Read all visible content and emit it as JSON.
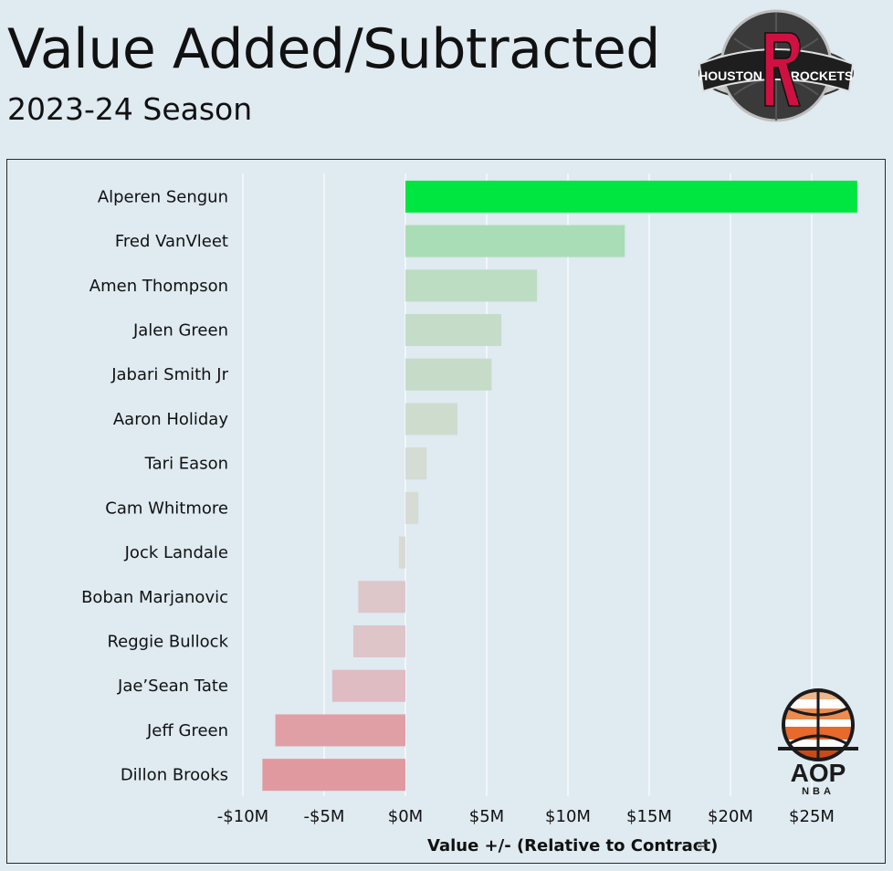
{
  "header": {
    "title": "Value Added/Subtracted",
    "subtitle": "2023-24 Season"
  },
  "logos": {
    "team": {
      "icon": "houston-rockets-logo",
      "text_left": "HOUSTON",
      "text_right": "ROCKETS"
    },
    "brand": {
      "icon": "aop-basketball-logo",
      "text": "AOP",
      "subtext": "NBA"
    }
  },
  "colors": {
    "max_positive": "#00e640",
    "mid_positive": "#a8ddb4",
    "neutral": "#d9dcd6",
    "mid_negative": "#dfbcc3",
    "max_negative": "#e0999e"
  },
  "chart_data": {
    "type": "bar",
    "orientation": "horizontal",
    "title": "Value Added/Subtracted",
    "subtitle": "2023-24 Season",
    "xlabel": "Value +/- (Relative to Contract)",
    "ylabel": "",
    "xlim": [
      -11,
      29
    ],
    "x_ticks": [
      -10,
      -5,
      0,
      5,
      10,
      15,
      20,
      25
    ],
    "x_tick_labels": [
      "-$10M",
      "-$5M",
      "$0M",
      "$5M",
      "$10M",
      "$15M",
      "$20M",
      "$25M"
    ],
    "grid": true,
    "units": "millions USD",
    "categories": [
      "Alperen Sengun",
      "Fred VanVleet",
      "Amen Thompson",
      "Jalen Green",
      "Jabari Smith Jr",
      "Aaron Holiday",
      "Tari Eason",
      "Cam Whitmore",
      "Jock Landale",
      "Boban Marjanovic",
      "Reggie Bullock",
      "Jae’Sean Tate",
      "Jeff Green",
      "Dillon Brooks"
    ],
    "values": [
      27.8,
      13.5,
      8.1,
      5.9,
      5.3,
      3.2,
      1.3,
      0.8,
      -0.4,
      -2.9,
      -3.2,
      -4.5,
      -8.0,
      -8.8
    ]
  }
}
